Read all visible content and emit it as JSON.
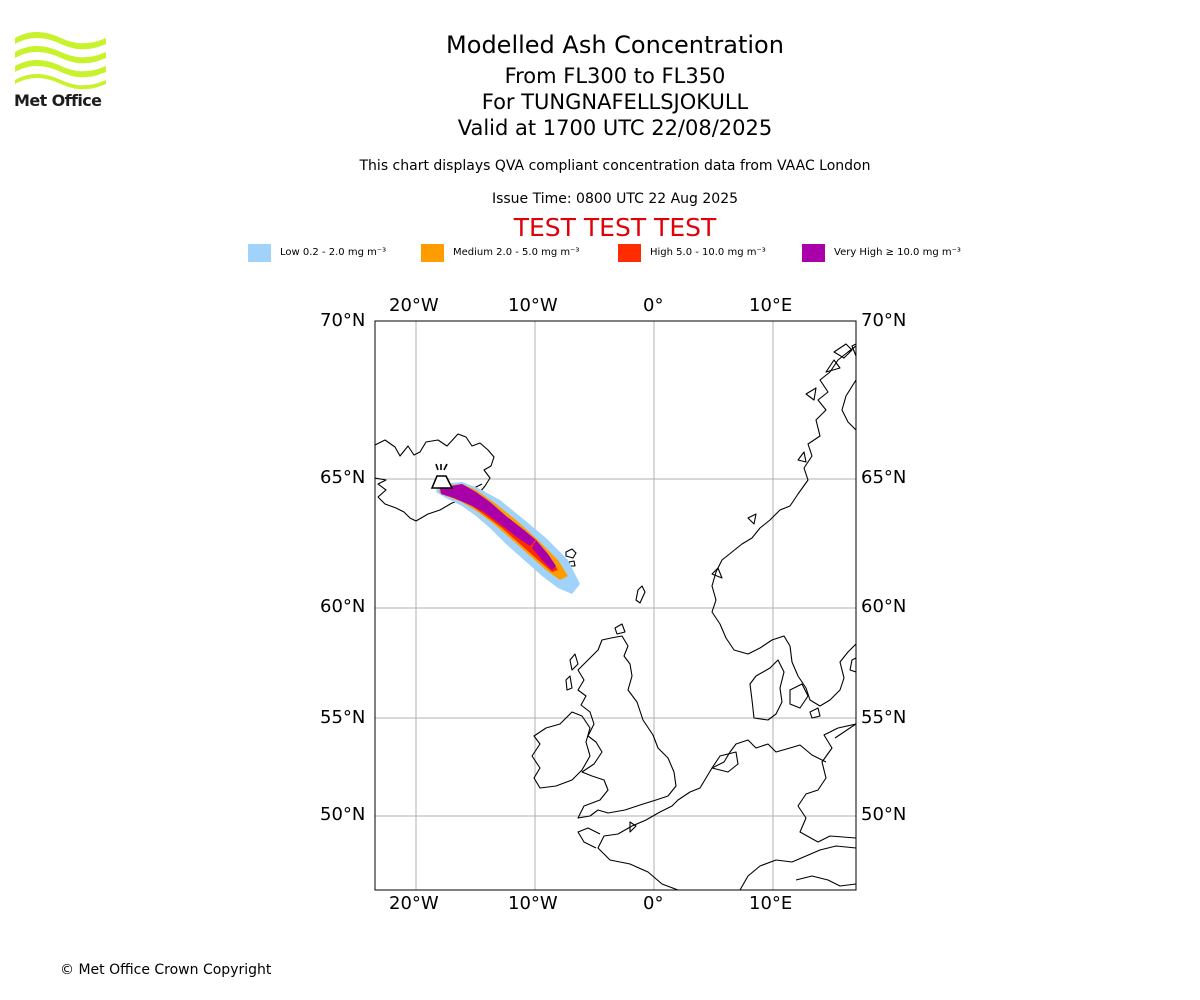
{
  "header": {
    "logo_text": "Met Office",
    "title": "Modelled Ash Concentration",
    "levels": "From FL300 to FL350",
    "volcano": "For TUNGNAFELLSJOKULL",
    "valid": "Valid at 1700 UTC 22/08/2025",
    "subtitle": "This chart displays QVA compliant concentration data from VAAC London",
    "issue_time": "Issue Time: 0800 UTC 22 Aug 2025",
    "banner": "TEST TEST TEST"
  },
  "legend": [
    {
      "label": "Low 0.2 - 2.0 mg m⁻³",
      "color": "#a0d2fa"
    },
    {
      "label": "Medium 2.0 - 5.0 mg m⁻³",
      "color": "#ff9c00"
    },
    {
      "label": "High 5.0 - 10.0 mg m⁻³",
      "color": "#ff2c00"
    },
    {
      "label": "Very High ≥ 10.0 mg m⁻³",
      "color": "#aa00aa"
    }
  ],
  "map": {
    "lon_range": [
      -23.5,
      17
    ],
    "lat_range": [
      47,
      70
    ],
    "lon_labels": [
      "20°W",
      "10°W",
      "0°",
      "10°E"
    ],
    "lat_labels": [
      "70°N",
      "65°N",
      "60°N",
      "55°N",
      "50°N"
    ],
    "volcano_icon": "volcano-symbol-icon",
    "plume": {
      "source": [
        -17.3,
        64.8
      ],
      "tip": [
        -6.5,
        60.7
      ]
    }
  },
  "footer": {
    "copyright": "© Met Office Crown Copyright"
  }
}
